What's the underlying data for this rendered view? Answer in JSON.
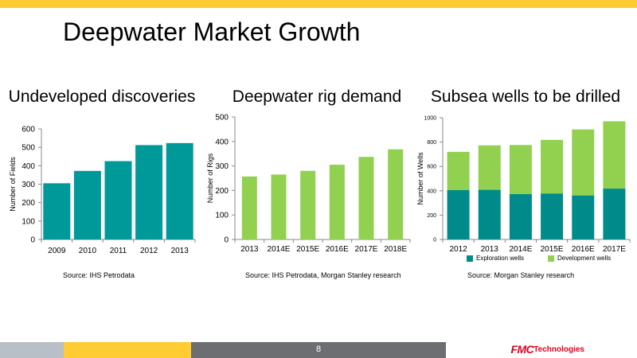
{
  "slide": {
    "title": "Deepwater Market Growth",
    "page_number": "8",
    "logo_fmc": "FMC",
    "logo_tech": "Technologies",
    "colors": {
      "top_bar": "#FFCC33",
      "footer_gray_light": "#B9BFC7",
      "footer_yellow": "#FFCC33",
      "footer_gray_dark": "#6D6E71",
      "logo_red": "#E3001B"
    }
  },
  "chart_data": [
    {
      "type": "bar",
      "title": "Undeveloped discoveries",
      "categories": [
        "2009",
        "2010",
        "2011",
        "2012",
        "2013"
      ],
      "values": [
        305,
        372,
        425,
        512,
        523
      ],
      "ylabel": "Number of Fields",
      "xlabel": "",
      "ylim": [
        0,
        600
      ],
      "yticks": [
        0,
        100,
        200,
        300,
        400,
        500,
        600
      ],
      "color": "#009999",
      "grid": false,
      "source": "Source:  IHS Petrodata"
    },
    {
      "type": "bar",
      "title": "Deepwater rig demand",
      "categories": [
        "2013",
        "2014E",
        "2015E",
        "2016E",
        "2017E",
        "2018E"
      ],
      "values": [
        257,
        265,
        280,
        305,
        337,
        368
      ],
      "ylabel": "Number of Rigs",
      "xlabel": "",
      "ylim": [
        0,
        500
      ],
      "yticks": [
        0,
        100,
        200,
        300,
        400,
        500
      ],
      "color": "#92D050",
      "grid": false,
      "source": "Source:  IHS Petrodata, Morgan Stanley research"
    },
    {
      "type": "bar",
      "stacked": true,
      "title": "Subsea wells to be drilled",
      "categories": [
        "2012",
        "2013",
        "2014E",
        "2015E",
        "2016E",
        "2017E"
      ],
      "series": [
        {
          "name": "Exploration wells",
          "values": [
            407,
            408,
            373,
            378,
            362,
            418
          ],
          "color": "#008B8B"
        },
        {
          "name": "Development wells",
          "values": [
            313,
            365,
            403,
            440,
            542,
            553
          ],
          "color": "#92D050"
        }
      ],
      "ylabel": "Number of Wells",
      "xlabel": "",
      "ylim": [
        0,
        1000
      ],
      "yticks": [
        0,
        200,
        400,
        600,
        800,
        1000
      ],
      "grid": false,
      "legend_position": "bottom",
      "source": "Source: Morgan Stanley research"
    }
  ]
}
